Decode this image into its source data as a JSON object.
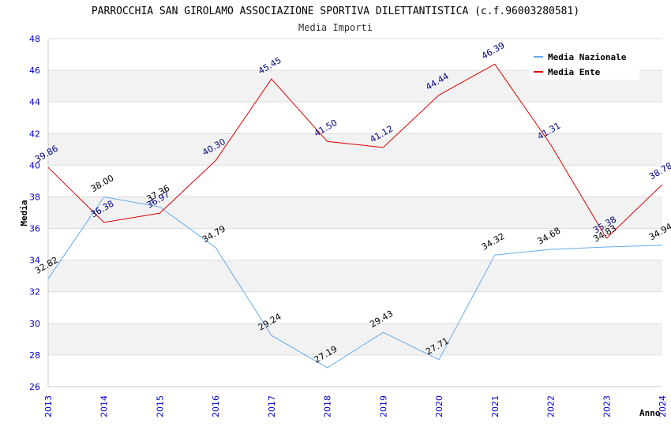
{
  "chart_data": {
    "type": "line",
    "title": "PARROCCHIA SAN GIROLAMO ASSOCIAZIONE SPORTIVA DILETTANTISTICA (c.f.96003280581)",
    "subtitle": "Media Importi",
    "xlabel": "Anno",
    "ylabel": "Media",
    "ylim": [
      26,
      48
    ],
    "yticks": [
      "26",
      "28",
      "30",
      "32",
      "34",
      "36",
      "38",
      "40",
      "42",
      "44",
      "46",
      "48"
    ],
    "x": [
      "2013",
      "2014",
      "2015",
      "2016",
      "2017",
      "2018",
      "2019",
      "2020",
      "2021",
      "2022",
      "2023",
      "2024"
    ],
    "grid": true,
    "legend_position": "top-right",
    "series": [
      {
        "name": "Media Nazionale",
        "color": "#66aaee",
        "values": [
          32.82,
          38.0,
          37.36,
          34.79,
          29.24,
          27.19,
          29.43,
          27.71,
          34.32,
          34.68,
          34.83,
          34.94
        ],
        "labels": [
          "32.82",
          "38.00",
          "37.36",
          "34.79",
          "29.24",
          "27.19",
          "29.43",
          "27.71",
          "34.32",
          "34.68",
          "34.83",
          "34.94"
        ]
      },
      {
        "name": "Media Ente",
        "color": "#dd0000",
        "values": [
          39.86,
          36.38,
          36.97,
          40.3,
          45.45,
          41.5,
          41.12,
          44.44,
          46.39,
          41.31,
          35.38,
          38.78
        ],
        "labels": [
          "39.86",
          "36.38",
          "36.97",
          "40.30",
          "45.45",
          "41.50",
          "41.12",
          "44.44",
          "46.39",
          "41.31",
          "35.38",
          "38.78"
        ]
      }
    ]
  }
}
